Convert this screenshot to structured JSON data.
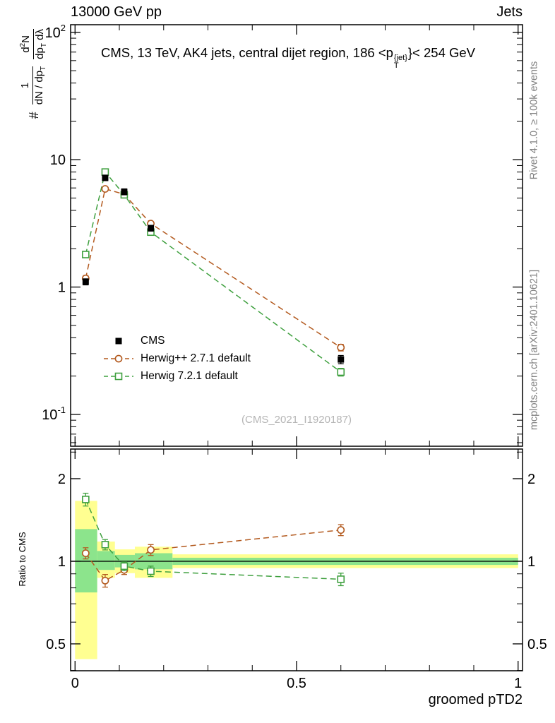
{
  "header": {
    "left": "13000 GeV pp",
    "right": "Jets"
  },
  "title": {
    "part1": "CMS, 13 TeV, AK4 jets, central dijet region, 186 <p",
    "sup": "{jet}",
    "sub": "T",
    "part2": "}< 254 GeV"
  },
  "watermark": "(CMS_2021_I1920187)",
  "xlabel": "groomed pTD2",
  "ylabel": {
    "hash": "#",
    "f1num": "1",
    "f1den": "dN / dp",
    "f1den_sub": "T",
    "f2num_a": "d",
    "f2num_sup": "2",
    "f2num_b": "N",
    "f2den_a": "dp",
    "f2den_sub": "T",
    "f2den_b": " dλ"
  },
  "ratio_label": "Ratio to CMS",
  "side_notes": {
    "top": "Rivet 4.1.0, ≥ 100k events",
    "bottom": "mcplots.cern.ch [arXiv:2401.10621]"
  },
  "legend": [
    {
      "label": "CMS",
      "color": "#000000",
      "marker": "square-filled",
      "line": "none"
    },
    {
      "label": "Herwig++ 2.7.1 default",
      "color": "#b35a1f",
      "marker": "circle-open",
      "line": "dashed"
    },
    {
      "label": "Herwig 7.2.1 default",
      "color": "#3fa03f",
      "marker": "square-open",
      "line": "dashed"
    }
  ],
  "chart_data": {
    "type": "scatter",
    "title": "CMS, 13 TeV, AK4 jets, central dijet region, 186 < pT{jet} < 254 GeV",
    "xlabel": "groomed pTD2",
    "ylabel": "# 1/(dN/dpT) d2N/(dpT dlambda)",
    "legend_position": "inside-left-bottom",
    "grid": false,
    "x_range": [
      -0.01,
      1.01
    ],
    "x": [
      0.024,
      0.068,
      0.111,
      0.171,
      0.6
    ],
    "xticks_major": [
      0,
      0.5,
      1
    ],
    "xticks_minor": [
      0.1,
      0.2,
      0.3,
      0.4,
      0.6,
      0.7,
      0.8,
      0.9
    ],
    "xtick_labels": [
      {
        "v": 0,
        "label": "0"
      },
      {
        "v": 0.5,
        "label": "0.5"
      },
      {
        "v": 1,
        "label": "1"
      }
    ],
    "main_panel": {
      "yscale": "log",
      "ylog_range": [
        -1.25,
        2.06
      ],
      "yticks": [
        {
          "v": 100,
          "base": "10",
          "sup": "2"
        },
        {
          "v": 10,
          "base": "10"
        },
        {
          "v": 1,
          "base": "1"
        },
        {
          "v": 0.1,
          "base": "10",
          "sup": "-1"
        }
      ],
      "series": [
        {
          "name": "CMS",
          "color": "#000000",
          "marker": "square-filled",
          "line": "none",
          "values": [
            1.1,
            7.2,
            5.6,
            2.9,
            0.27
          ],
          "errors": [
            0.06,
            0.35,
            0.3,
            0.15,
            0.02
          ]
        },
        {
          "name": "Herwig++ 2.7.1 default",
          "color": "#b35a1f",
          "marker": "circle-open",
          "line": "dashed",
          "values": [
            1.17,
            5.9,
            5.35,
            3.15,
            0.335
          ],
          "errors": [
            0.06,
            0.2,
            0.18,
            0.12,
            0.02
          ]
        },
        {
          "name": "Herwig 7.2.1 default",
          "color": "#3fa03f",
          "marker": "square-open",
          "line": "dashed",
          "values": [
            1.8,
            8.0,
            5.3,
            2.7,
            0.215
          ],
          "errors": [
            0.1,
            0.25,
            0.2,
            0.12,
            0.015
          ]
        }
      ]
    },
    "ratio_panel": {
      "yscale": "log",
      "ylog_range": [
        -0.399,
        0.409
      ],
      "ref_line": 1,
      "yticks": [
        {
          "v": 2,
          "label": "2"
        },
        {
          "v": 1,
          "label": "1"
        },
        {
          "v": 0.5,
          "label": "0.5"
        }
      ],
      "yticks_minor": [
        0.4,
        0.6,
        0.7,
        0.8,
        0.9,
        2.5
      ],
      "band_colors": {
        "yellow": "#ffff91",
        "green": "#8ce48c"
      },
      "bands": [
        {
          "x0": 0.0,
          "x1": 0.05,
          "yellow": [
            0.44,
            1.66
          ],
          "green": [
            0.77,
            1.31
          ]
        },
        {
          "x0": 0.05,
          "x1": 0.09,
          "yellow": [
            0.87,
            1.18
          ],
          "green": [
            0.93,
            1.09
          ]
        },
        {
          "x0": 0.09,
          "x1": 0.135,
          "yellow": [
            0.905,
            1.105
          ],
          "green": [
            0.95,
            1.055
          ]
        },
        {
          "x0": 0.135,
          "x1": 0.22,
          "yellow": [
            0.87,
            1.13
          ],
          "green": [
            0.935,
            1.07
          ]
        },
        {
          "x0": 0.22,
          "x1": 1.0,
          "yellow": [
            0.945,
            1.06
          ],
          "green": [
            0.97,
            1.03
          ]
        }
      ],
      "series": [
        {
          "name": "Herwig++ 2.7.1 default",
          "color": "#b35a1f",
          "marker": "circle-open",
          "line": "dashed",
          "values": [
            1.07,
            0.85,
            0.93,
            1.1,
            1.3
          ],
          "errors": [
            0.05,
            0.045,
            0.035,
            0.05,
            0.06
          ]
        },
        {
          "name": "Herwig 7.2.1 default",
          "color": "#3fa03f",
          "marker": "square-open",
          "line": "dashed",
          "values": [
            1.68,
            1.15,
            0.96,
            0.92,
            0.86
          ],
          "errors": [
            0.09,
            0.05,
            0.035,
            0.04,
            0.045
          ]
        }
      ]
    }
  }
}
